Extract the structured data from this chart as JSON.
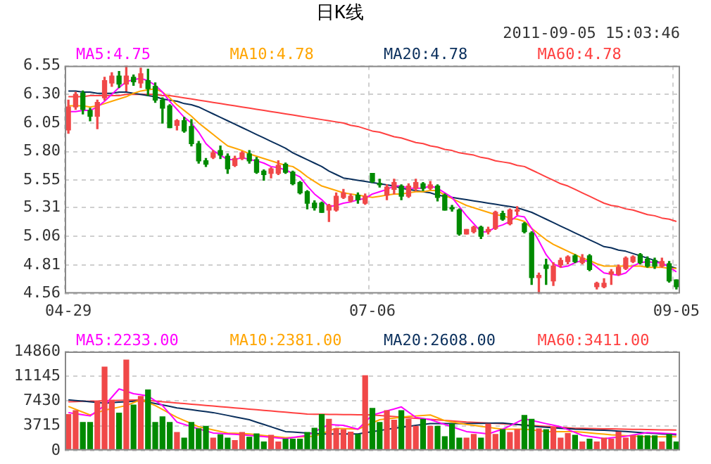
{
  "chart_data": [
    {
      "type": "candlestick",
      "title": "日K线",
      "subtitle": "2011-09-05 15:03:46",
      "categories": [
        "04-29",
        null,
        null,
        null,
        null,
        null,
        null,
        null,
        null,
        null,
        null,
        null,
        null,
        null,
        null,
        null,
        null,
        null,
        null,
        null,
        null,
        null,
        null,
        null,
        null,
        null,
        null,
        null,
        null,
        null,
        null,
        null,
        null,
        null,
        null,
        null,
        null,
        null,
        null,
        null,
        null,
        null,
        "07-06",
        null,
        null,
        null,
        null,
        null,
        null,
        null,
        null,
        null,
        null,
        null,
        null,
        null,
        null,
        null,
        null,
        null,
        null,
        null,
        null,
        null,
        null,
        null,
        null,
        null,
        null,
        null,
        null,
        null,
        null,
        null,
        null,
        null,
        null,
        null,
        null,
        null,
        null,
        null,
        null,
        null,
        "09-05"
      ],
      "ohlc": [
        [
          5.99,
          6.25,
          5.96,
          6.19
        ],
        [
          6.19,
          6.32,
          6.17,
          6.3
        ],
        [
          6.31,
          6.33,
          6.13,
          6.17
        ],
        [
          6.16,
          6.18,
          6.07,
          6.11
        ],
        [
          6.11,
          6.25,
          6.0,
          6.23
        ],
        [
          6.27,
          6.45,
          6.25,
          6.42
        ],
        [
          6.4,
          6.49,
          6.37,
          6.46
        ],
        [
          6.46,
          6.5,
          6.36,
          6.39
        ],
        [
          6.39,
          6.55,
          6.33,
          6.46
        ],
        [
          6.45,
          6.47,
          6.38,
          6.41
        ],
        [
          6.4,
          6.53,
          6.36,
          6.48
        ],
        [
          6.42,
          6.52,
          6.29,
          6.35
        ],
        [
          6.37,
          6.4,
          6.23,
          6.25
        ],
        [
          6.25,
          6.27,
          6.05,
          6.18
        ],
        [
          6.2,
          6.21,
          6.01,
          6.01
        ],
        [
          6.03,
          6.08,
          5.99,
          6.07
        ],
        [
          6.07,
          6.1,
          5.97,
          5.98
        ],
        [
          6.02,
          6.08,
          5.85,
          5.87
        ],
        [
          5.87,
          5.89,
          5.7,
          5.72
        ],
        [
          5.72,
          5.74,
          5.67,
          5.69
        ],
        [
          5.75,
          5.81,
          5.74,
          5.79
        ],
        [
          5.81,
          5.85,
          5.74,
          5.77
        ],
        [
          5.76,
          5.78,
          5.61,
          5.65
        ],
        [
          5.68,
          5.76,
          5.67,
          5.74
        ],
        [
          5.74,
          5.8,
          5.73,
          5.79
        ],
        [
          5.78,
          5.81,
          5.7,
          5.72
        ],
        [
          5.73,
          5.75,
          5.61,
          5.62
        ],
        [
          5.63,
          5.64,
          5.55,
          5.6
        ],
        [
          5.61,
          5.66,
          5.57,
          5.65
        ],
        [
          5.61,
          5.72,
          5.6,
          5.68
        ],
        [
          5.69,
          5.7,
          5.61,
          5.62
        ],
        [
          5.62,
          5.63,
          5.51,
          5.52
        ],
        [
          5.53,
          5.54,
          5.43,
          5.44
        ],
        [
          5.45,
          5.46,
          5.3,
          5.35
        ],
        [
          5.35,
          5.37,
          5.29,
          5.31
        ],
        [
          5.35,
          5.36,
          5.27,
          5.27
        ],
        [
          5.29,
          5.34,
          5.19,
          5.33
        ],
        [
          5.29,
          5.44,
          5.28,
          5.41
        ],
        [
          5.4,
          5.47,
          5.39,
          5.44
        ],
        [
          5.37,
          5.43,
          5.36,
          5.41
        ],
        [
          5.42,
          5.44,
          5.35,
          5.38
        ],
        [
          5.35,
          5.43,
          5.34,
          5.41
        ],
        [
          5.61,
          5.61,
          5.53,
          5.54
        ],
        [
          5.52,
          5.56,
          5.49,
          5.51
        ],
        [
          5.42,
          5.51,
          5.38,
          5.49
        ],
        [
          5.47,
          5.56,
          5.43,
          5.53
        ],
        [
          5.5,
          5.51,
          5.38,
          5.41
        ],
        [
          5.41,
          5.52,
          5.4,
          5.5
        ],
        [
          5.48,
          5.56,
          5.46,
          5.53
        ],
        [
          5.52,
          5.53,
          5.46,
          5.48
        ],
        [
          5.48,
          5.54,
          5.47,
          5.51
        ],
        [
          5.5,
          5.51,
          5.37,
          5.4
        ],
        [
          5.42,
          5.43,
          5.29,
          5.29
        ],
        [
          5.3,
          5.33,
          5.28,
          5.3
        ],
        [
          5.29,
          5.3,
          5.07,
          5.08
        ],
        [
          5.08,
          5.12,
          5.08,
          5.12
        ],
        [
          5.1,
          5.15,
          5.09,
          5.14
        ],
        [
          5.14,
          5.15,
          5.04,
          5.06
        ],
        [
          5.1,
          5.14,
          5.08,
          5.12
        ],
        [
          5.13,
          5.28,
          5.12,
          5.27
        ],
        [
          5.26,
          5.28,
          5.2,
          5.21
        ],
        [
          5.17,
          5.3,
          5.16,
          5.29
        ],
        [
          5.28,
          5.32,
          5.25,
          5.29
        ],
        [
          5.17,
          5.18,
          5.09,
          5.1
        ],
        [
          5.09,
          5.1,
          4.64,
          4.7
        ],
        [
          4.7,
          4.74,
          4.56,
          4.72
        ],
        [
          4.81,
          4.86,
          4.64,
          4.78
        ],
        [
          4.67,
          4.83,
          4.63,
          4.8
        ],
        [
          4.81,
          4.87,
          4.79,
          4.85
        ],
        [
          4.84,
          4.89,
          4.82,
          4.88
        ],
        [
          4.89,
          4.9,
          4.83,
          4.84
        ],
        [
          4.83,
          4.9,
          4.82,
          4.87
        ],
        [
          4.89,
          4.9,
          4.76,
          4.77
        ],
        [
          4.62,
          4.66,
          4.6,
          4.65
        ],
        [
          4.62,
          4.69,
          4.61,
          4.65
        ],
        [
          4.73,
          4.77,
          4.64,
          4.75
        ],
        [
          4.73,
          4.81,
          4.72,
          4.79
        ],
        [
          4.78,
          4.88,
          4.77,
          4.87
        ],
        [
          4.84,
          4.89,
          4.83,
          4.88
        ],
        [
          4.9,
          4.91,
          4.82,
          4.83
        ],
        [
          4.86,
          4.88,
          4.79,
          4.8
        ],
        [
          4.85,
          4.87,
          4.78,
          4.8
        ],
        [
          4.8,
          4.87,
          4.79,
          4.84
        ],
        [
          4.82,
          4.84,
          4.66,
          4.67
        ],
        [
          4.68,
          4.68,
          4.6,
          4.62
        ]
      ],
      "colors": [
        "#f04848",
        "#f04848",
        "#008a00",
        "#008a00",
        "#f04848",
        "#f04848",
        "#f04848",
        "#008a00",
        "#f04848",
        "#008a00",
        "#f04848",
        "#008a00",
        "#008a00",
        "#008a00",
        "#008a00",
        "#f04848",
        "#008a00",
        "#008a00",
        "#008a00",
        "#008a00",
        "#f04848",
        "#008a00",
        "#008a00",
        "#f04848",
        "#f04848",
        "#008a00",
        "#008a00",
        "#008a00",
        "#f04848",
        "#f04848",
        "#008a00",
        "#008a00",
        "#008a00",
        "#008a00",
        "#008a00",
        "#008a00",
        "#f04848",
        "#f04848",
        "#f04848",
        "#f04848",
        "#008a00",
        "#f04848",
        "#008a00",
        "#008a00",
        "#f04848",
        "#f04848",
        "#008a00",
        "#f04848",
        "#f04848",
        "#008a00",
        "#f04848",
        "#008a00",
        "#008a00",
        "#008a00",
        "#008a00",
        "#f04848",
        "#f04848",
        "#008a00",
        "#f04848",
        "#f04848",
        "#008a00",
        "#f04848",
        "#f04848",
        "#008a00",
        "#008a00",
        "#f04848",
        "#008a00",
        "#f04848",
        "#f04848",
        "#f04848",
        "#008a00",
        "#f04848",
        "#008a00",
        "#f04848",
        "#f04848",
        "#f04848",
        "#f04848",
        "#f04848",
        "#f04848",
        "#008a00",
        "#008a00",
        "#008a00",
        "#f04848",
        "#008a00",
        "#008a00"
      ],
      "series": [
        {
          "type": "line",
          "name": "MA5:4.75",
          "color": "#ff00ff",
          "values": [
            6.15,
            6.15,
            6.16,
            6.16,
            6.19,
            6.24,
            6.3,
            6.36,
            6.41,
            6.43,
            6.44,
            6.42,
            6.38,
            6.32,
            6.24,
            6.17,
            6.1,
            6.05,
            5.97,
            5.87,
            5.81,
            5.77,
            5.73,
            5.73,
            5.75,
            5.73,
            5.72,
            5.7,
            5.67,
            5.66,
            5.64,
            5.61,
            5.58,
            5.5,
            5.43,
            5.38,
            5.32,
            5.33,
            5.35,
            5.36,
            5.38,
            5.39,
            5.43,
            5.45,
            5.47,
            5.5,
            5.5,
            5.48,
            5.48,
            5.48,
            5.5,
            5.48,
            5.44,
            5.4,
            5.32,
            5.24,
            5.17,
            5.1,
            5.1,
            5.14,
            5.16,
            5.19,
            5.24,
            5.23,
            5.13,
            5.02,
            4.9,
            4.82,
            4.79,
            4.8,
            4.83,
            4.85,
            4.84,
            4.79,
            4.74,
            4.73,
            4.72,
            4.74,
            4.8,
            4.83,
            4.84,
            4.83,
            4.83,
            4.79,
            4.75
          ]
        },
        {
          "type": "line",
          "name": "MA10:4.78",
          "color": "#ffa500",
          "values": [
            6.2,
            6.2,
            6.2,
            6.19,
            6.2,
            6.22,
            6.24,
            6.26,
            6.28,
            6.31,
            6.33,
            6.34,
            6.35,
            6.32,
            6.27,
            6.21,
            6.16,
            6.11,
            6.05,
            6.0,
            5.95,
            5.9,
            5.85,
            5.83,
            5.81,
            5.78,
            5.76,
            5.74,
            5.72,
            5.7,
            5.68,
            5.67,
            5.63,
            5.58,
            5.54,
            5.5,
            5.48,
            5.46,
            5.44,
            5.43,
            5.42,
            5.41,
            5.4,
            5.41,
            5.42,
            5.43,
            5.43,
            5.44,
            5.45,
            5.45,
            5.46,
            5.46,
            5.42,
            5.39,
            5.36,
            5.33,
            5.31,
            5.29,
            5.27,
            5.25,
            5.24,
            5.22,
            5.21,
            5.19,
            5.13,
            5.08,
            5.03,
            4.99,
            4.96,
            4.93,
            4.9,
            4.87,
            4.85,
            4.82,
            4.8,
            4.8,
            4.8,
            4.8,
            4.8,
            4.8,
            4.79,
            4.79,
            4.79,
            4.78,
            4.78
          ]
        },
        {
          "type": "line",
          "name": "MA20:4.78",
          "color": "#0a2f5c",
          "values": [
            6.33,
            6.33,
            6.32,
            6.32,
            6.31,
            6.31,
            6.31,
            6.32,
            6.32,
            6.31,
            6.3,
            6.29,
            6.28,
            6.26,
            6.25,
            6.24,
            6.22,
            6.21,
            6.19,
            6.16,
            6.13,
            6.1,
            6.07,
            6.04,
            6.01,
            5.98,
            5.95,
            5.92,
            5.89,
            5.86,
            5.83,
            5.79,
            5.76,
            5.73,
            5.7,
            5.67,
            5.63,
            5.6,
            5.57,
            5.56,
            5.55,
            5.54,
            5.53,
            5.52,
            5.51,
            5.5,
            5.48,
            5.47,
            5.46,
            5.45,
            5.44,
            5.42,
            5.41,
            5.4,
            5.39,
            5.38,
            5.37,
            5.36,
            5.35,
            5.34,
            5.33,
            5.32,
            5.31,
            5.29,
            5.27,
            5.24,
            5.21,
            5.18,
            5.15,
            5.12,
            5.09,
            5.06,
            5.03,
            5.0,
            4.97,
            4.96,
            4.94,
            4.93,
            4.91,
            4.89,
            4.87,
            4.85,
            4.82,
            4.8,
            4.78
          ]
        },
        {
          "type": "line",
          "name": "MA60:4.78",
          "color": "#ff4040",
          "values": [
            6.28,
            6.28,
            6.28,
            6.29,
            6.29,
            6.29,
            6.29,
            6.29,
            6.3,
            6.3,
            6.3,
            6.3,
            6.3,
            6.29,
            6.29,
            6.28,
            6.27,
            6.26,
            6.25,
            6.24,
            6.23,
            6.22,
            6.21,
            6.2,
            6.19,
            6.18,
            6.17,
            6.16,
            6.15,
            6.14,
            6.13,
            6.12,
            6.11,
            6.1,
            6.09,
            6.08,
            6.07,
            6.06,
            6.05,
            6.03,
            6.02,
            6.0,
            5.98,
            5.97,
            5.95,
            5.93,
            5.92,
            5.9,
            5.88,
            5.87,
            5.85,
            5.84,
            5.82,
            5.81,
            5.79,
            5.78,
            5.77,
            5.75,
            5.74,
            5.72,
            5.71,
            5.7,
            5.68,
            5.67,
            5.64,
            5.61,
            5.58,
            5.55,
            5.52,
            5.5,
            5.47,
            5.44,
            5.41,
            5.38,
            5.35,
            5.33,
            5.32,
            5.3,
            5.29,
            5.27,
            5.25,
            5.24,
            5.22,
            5.21,
            5.19
          ]
        }
      ],
      "ylim": [
        4.56,
        6.55
      ],
      "yticks": [
        4.56,
        4.81,
        5.06,
        5.31,
        5.55,
        {
          "value": 5.8,
          "label": "5.80"
        },
        6.05,
        {
          "value": 6.3,
          "label": "6.30"
        },
        6.55
      ],
      "grid": true
    },
    {
      "type": "bar",
      "categories": [
        null,
        null,
        null,
        null,
        null,
        null,
        null,
        null,
        null,
        null,
        null,
        null,
        null,
        null,
        null,
        null,
        null,
        null,
        null,
        null,
        null,
        null,
        null,
        null,
        null,
        null,
        null,
        null,
        null,
        null,
        null,
        null,
        null,
        null,
        null,
        null,
        null,
        null,
        null,
        null,
        null,
        null,
        null,
        null,
        null,
        null,
        null,
        null,
        null,
        null,
        null,
        null,
        null,
        null,
        null,
        null,
        null,
        null,
        null,
        null,
        null,
        null,
        null,
        null,
        null,
        null,
        null,
        null,
        null,
        null,
        null,
        null,
        null,
        null,
        null,
        null,
        null,
        null,
        null,
        null,
        null,
        null,
        null,
        null,
        null
      ],
      "values": [
        5470,
        6040,
        4270,
        4270,
        7470,
        12590,
        7610,
        5690,
        13650,
        6900,
        8180,
        9170,
        4270,
        5120,
        4270,
        2770,
        1920,
        4270,
        3340,
        3700,
        1920,
        2420,
        1920,
        1560,
        2770,
        2060,
        2560,
        1350,
        2350,
        1350,
        1780,
        1780,
        1780,
        2770,
        3410,
        5470,
        4760,
        3340,
        3200,
        2840,
        2490,
        11300,
        6400,
        4270,
        6040,
        4620,
        6040,
        4760,
        3700,
        4760,
        3700,
        3700,
        2130,
        4050,
        1920,
        1920,
        2490,
        1920,
        4050,
        2490,
        3200,
        2770,
        3200,
        5330,
        4760,
        3340,
        3200,
        3560,
        1920,
        2630,
        2350,
        1350,
        1780,
        1350,
        1920,
        1780,
        2840,
        1920,
        2280,
        2280,
        2280,
        2280,
        1350,
        2490,
        1350
      ],
      "colors": [
        "#f04848",
        "#f04848",
        "#008a00",
        "#008a00",
        "#f04848",
        "#f04848",
        "#f04848",
        "#008a00",
        "#f04848",
        "#008a00",
        "#f04848",
        "#008a00",
        "#008a00",
        "#008a00",
        "#008a00",
        "#f04848",
        "#008a00",
        "#008a00",
        "#008a00",
        "#008a00",
        "#f04848",
        "#008a00",
        "#008a00",
        "#f04848",
        "#f04848",
        "#008a00",
        "#008a00",
        "#008a00",
        "#f04848",
        "#f04848",
        "#008a00",
        "#008a00",
        "#008a00",
        "#008a00",
        "#008a00",
        "#008a00",
        "#f04848",
        "#f04848",
        "#f04848",
        "#f04848",
        "#008a00",
        "#f04848",
        "#008a00",
        "#008a00",
        "#f04848",
        "#f04848",
        "#008a00",
        "#f04848",
        "#f04848",
        "#008a00",
        "#f04848",
        "#008a00",
        "#008a00",
        "#008a00",
        "#008a00",
        "#f04848",
        "#f04848",
        "#008a00",
        "#f04848",
        "#f04848",
        "#008a00",
        "#f04848",
        "#f04848",
        "#008a00",
        "#008a00",
        "#f04848",
        "#008a00",
        "#f04848",
        "#f04848",
        "#f04848",
        "#008a00",
        "#f04848",
        "#008a00",
        "#f04848",
        "#f04848",
        "#f04848",
        "#f04848",
        "#f04848",
        "#f04848",
        "#008a00",
        "#008a00",
        "#008a00",
        "#f04848",
        "#008a00",
        "#008a00"
      ],
      "series": [
        {
          "type": "line",
          "name": "MA5:2233.00",
          "color": "#ff00ff",
          "values": [
            5690,
            5520,
            5360,
            5190,
            5970,
            6750,
            8000,
            9240,
            8890,
            8530,
            8360,
            8180,
            7470,
            6750,
            5510,
            4270,
            3920,
            3560,
            3250,
            2940,
            2630,
            2560,
            2490,
            2420,
            2350,
            2280,
            2180,
            2080,
            1980,
            1880,
            1780,
            1950,
            2110,
            2280,
            2820,
            3370,
            3910,
            3840,
            3770,
            3490,
            3200,
            4270,
            5330,
            5630,
            5940,
            6240,
            6540,
            5760,
            4980,
            4800,
            4620,
            4270,
            3910,
            3560,
            3200,
            2840,
            2720,
            2610,
            2490,
            2850,
            3200,
            3720,
            4240,
            4760,
            4520,
            4270,
            4030,
            3800,
            3560,
            3130,
            2710,
            2280,
            2110,
            1950,
            1780,
            1900,
            2010,
            2130,
            2320,
            2510,
            2700,
            2650,
            2600,
            2540,
            2490
          ]
        },
        {
          "type": "line",
          "name": "MA10:2381.00",
          "color": "#ffa500",
          "values": [
            6610,
            6180,
            5760,
            5330,
            5690,
            6040,
            6280,
            6510,
            6750,
            7180,
            7610,
            7180,
            6750,
            6160,
            5570,
            4980,
            4510,
            4040,
            3560,
            3330,
            3100,
            2860,
            2630,
            2580,
            2540,
            2490,
            2380,
            2260,
            2150,
            2030,
            1920,
            1970,
            2030,
            2080,
            2130,
            2530,
            2940,
            3340,
            3290,
            3250,
            3200,
            3670,
            4150,
            4620,
            4750,
            4870,
            5000,
            5120,
            5190,
            5260,
            5330,
            4910,
            4480,
            4290,
            4100,
            3910,
            3770,
            3630,
            3480,
            3340,
            3200,
            3200,
            3200,
            3200,
            3080,
            2960,
            2840,
            2840,
            2840,
            2840,
            2840,
            2740,
            2640,
            2550,
            2450,
            2350,
            2290,
            2230,
            2180,
            2120,
            2060,
            2060,
            2060,
            2060,
            2060
          ]
        },
        {
          "type": "line",
          "name": "MA20:2608.00",
          "color": "#0a2f5c",
          "values": [
            7610,
            7510,
            7410,
            7310,
            7210,
            7110,
            7180,
            7250,
            7320,
            7400,
            7470,
            7260,
            7050,
            6830,
            6620,
            6400,
            6260,
            6120,
            5970,
            5830,
            5690,
            5480,
            5270,
            5050,
            4840,
            4620,
            4260,
            3910,
            3550,
            3200,
            2840,
            2770,
            2700,
            2630,
            2560,
            2490,
            2490,
            2490,
            2490,
            2490,
            2490,
            2660,
            2830,
            3000,
            3170,
            3340,
            3480,
            3620,
            3770,
            3910,
            4050,
            4050,
            4050,
            4050,
            4050,
            4050,
            4060,
            4080,
            4090,
            4110,
            4120,
            4010,
            3900,
            3780,
            3670,
            3560,
            3490,
            3420,
            3340,
            3270,
            3200,
            3160,
            3120,
            3070,
            3030,
            2990,
            2920,
            2850,
            2770,
            2700,
            2630,
            2560,
            2490,
            2420,
            2350
          ]
        },
        {
          "type": "line",
          "name": "MA60:3411.00",
          "color": "#ff4040",
          "values": [
            7320,
            7350,
            7380,
            7400,
            7430,
            7460,
            7490,
            7520,
            7540,
            7570,
            7600,
            7510,
            7410,
            7320,
            7230,
            7140,
            7040,
            6950,
            6860,
            6770,
            6670,
            6580,
            6490,
            6400,
            6300,
            6210,
            6120,
            6030,
            5930,
            5840,
            5750,
            5660,
            5560,
            5470,
            5450,
            5440,
            5420,
            5410,
            5390,
            5380,
            5360,
            5350,
            5330,
            5250,
            5170,
            5090,
            5000,
            4920,
            4840,
            4760,
            4680,
            4600,
            4520,
            4430,
            4350,
            4270,
            4220,
            4170,
            4120,
            4070,
            4010,
            3960,
            3910,
            3840,
            3770,
            3700,
            3630,
            3550,
            3480,
            3410,
            3340,
            3320,
            3300,
            3280,
            3260,
            3240,
            3220,
            3200,
            3180,
            3160,
            3140,
            3120,
            3100,
            3080,
            3060
          ]
        }
      ],
      "ylim": [
        0,
        14860
      ],
      "yticks": [
        0,
        3715,
        7430,
        11145,
        14860
      ],
      "grid": "y",
      "tick_labels": "y"
    }
  ]
}
